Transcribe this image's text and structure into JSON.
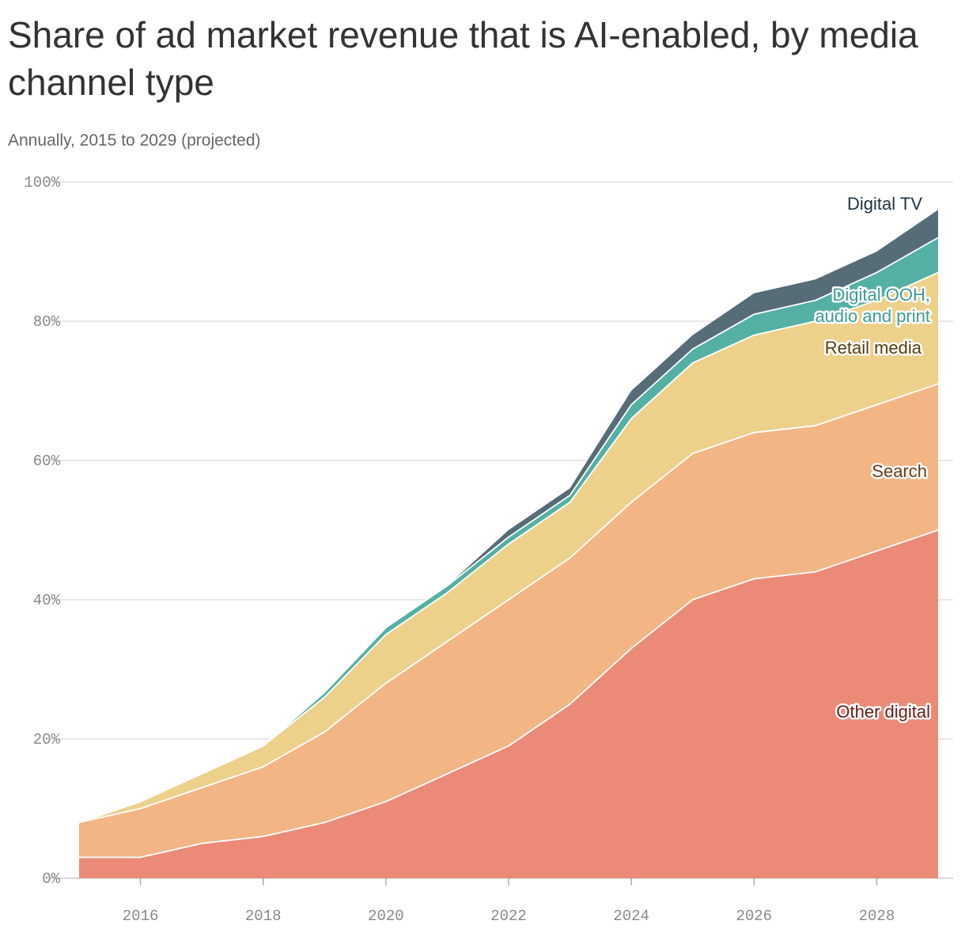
{
  "chart_data": {
    "type": "area",
    "stacked": true,
    "title": "Share of ad market revenue that is AI-enabled, by media channel type",
    "subtitle": "Annually, 2015 to 2029 (projected)",
    "x": [
      2015,
      2016,
      2017,
      2018,
      2019,
      2020,
      2021,
      2022,
      2023,
      2024,
      2025,
      2026,
      2027,
      2028,
      2029
    ],
    "xlim": [
      2015,
      2029
    ],
    "x_ticks": [
      2016,
      2018,
      2020,
      2022,
      2024,
      2026,
      2028
    ],
    "x_tick_labels": [
      "2016",
      "2018",
      "2020",
      "2022",
      "2024",
      "2026",
      "2028"
    ],
    "ylim": [
      0,
      100
    ],
    "y_ticks": [
      0,
      20,
      40,
      60,
      80,
      100
    ],
    "y_tick_labels": [
      "0%",
      "20%",
      "40%",
      "60%",
      "80%",
      "100%"
    ],
    "xlabel": "",
    "ylabel": "",
    "grid": true,
    "series": [
      {
        "name": "Other digital",
        "label": "Other digital",
        "color": "#ec8a78",
        "label_color": "#6b1a14",
        "values": [
          3,
          3,
          5,
          6,
          8,
          11,
          15,
          19,
          25,
          33,
          40,
          43,
          44,
          47,
          50
        ]
      },
      {
        "name": "Search",
        "label": "Search",
        "color": "#f3b583",
        "label_color": "#6b3a10",
        "values": [
          5,
          7,
          8,
          10,
          13,
          17,
          19,
          21,
          21,
          21,
          21,
          21,
          21,
          21,
          21
        ]
      },
      {
        "name": "Retail media",
        "label": "Retail media",
        "color": "#edd18b",
        "label_color": "#5a3d08",
        "values": [
          0,
          1,
          2,
          3,
          5,
          7,
          7,
          8,
          8,
          12,
          13,
          14,
          15,
          15,
          16
        ]
      },
      {
        "name": "Digital OOH, audio and print",
        "label_lines": [
          "Digital OOH,",
          "audio and print"
        ],
        "color": "#55b0a4",
        "label_color": "#3a9e92",
        "values": [
          0,
          0,
          0,
          0,
          0.7,
          1,
          1,
          1,
          1,
          2,
          2,
          3,
          3,
          4,
          5
        ]
      },
      {
        "name": "Digital TV",
        "label": "Digital TV",
        "color": "#566c77",
        "label_color": "#1e3340",
        "values": [
          0,
          0,
          0,
          0,
          0,
          0,
          0,
          1,
          1,
          2,
          2,
          3,
          3,
          3,
          4
        ]
      }
    ]
  }
}
